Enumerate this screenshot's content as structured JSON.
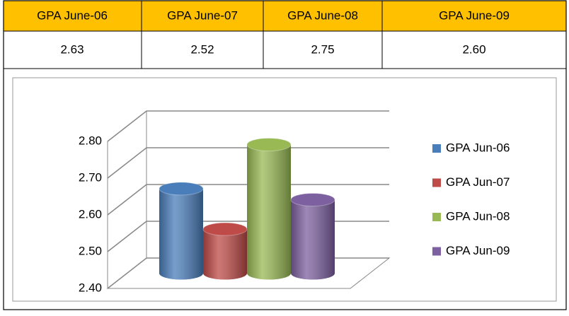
{
  "table": {
    "headers": [
      "GPA June-06",
      "GPA June-07",
      "GPA June-08",
      "GPA June-09"
    ],
    "rows": [
      [
        "2.63",
        "2.52",
        "2.75",
        "2.60"
      ]
    ]
  },
  "chart_data": {
    "type": "bar",
    "categories": [
      null
    ],
    "series": [
      {
        "name": "GPA Jun-06",
        "color": "#4a7ebb",
        "values": [
          2.63
        ]
      },
      {
        "name": "GPA Jun-07",
        "color": "#be4b48",
        "values": [
          2.52
        ]
      },
      {
        "name": "GPA Jun-08",
        "color": "#98b954",
        "values": [
          2.75
        ]
      },
      {
        "name": "GPA Jun-09",
        "color": "#7d60a0",
        "values": [
          2.6
        ]
      }
    ],
    "ylim": [
      2.4,
      2.8
    ],
    "yticks": [
      {
        "value": 2.4,
        "label": "2.40"
      },
      {
        "value": 2.5,
        "label": "2.50"
      },
      {
        "value": 2.6,
        "label": "2.60"
      },
      {
        "value": 2.7,
        "label": "2.70"
      },
      {
        "value": 2.8,
        "label": "2.80"
      }
    ],
    "grid": true,
    "legend": "right"
  }
}
